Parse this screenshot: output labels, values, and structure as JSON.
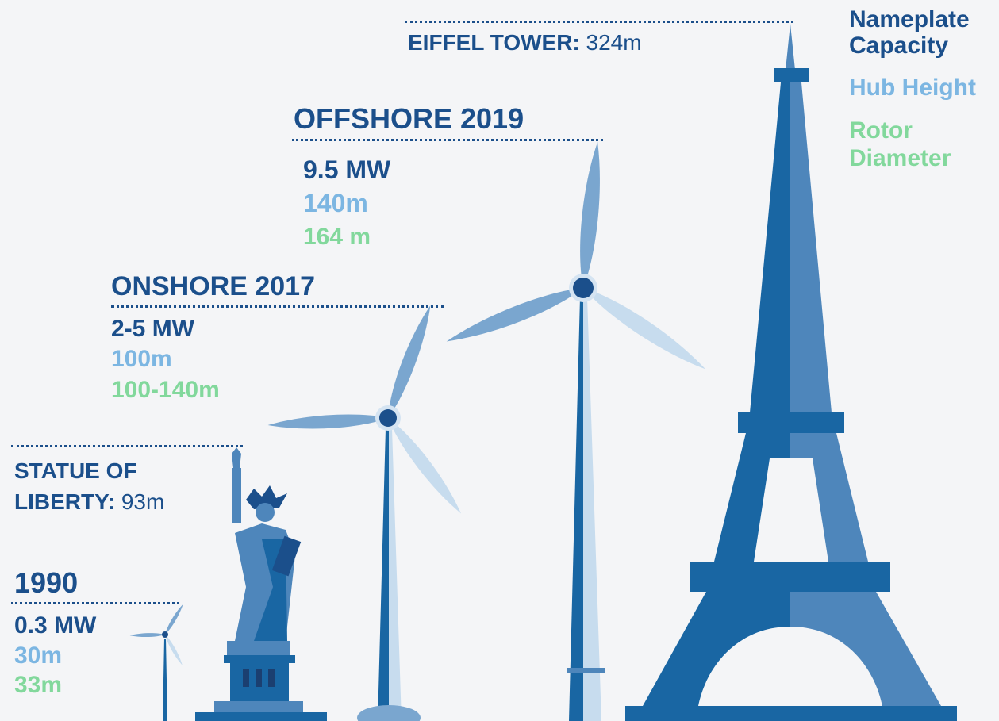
{
  "legend": [
    {
      "label": "Nameplate Capacity"
    },
    {
      "label": "Hub Height"
    },
    {
      "label": "Rotor Diameter"
    }
  ],
  "landmarks": [
    {
      "name": "EIFFEL TOWER:",
      "height": "324m"
    },
    {
      "name": "STATUE OF LIBERTY:",
      "height": "93m"
    }
  ],
  "turbines": [
    {
      "title": "1990",
      "capacity": "0.3 MW",
      "hub_height": "30m",
      "rotor_diameter": "33m"
    },
    {
      "title": "ONSHORE 2017",
      "capacity": "2-5 MW",
      "hub_height": "100m",
      "rotor_diameter": "100-140m"
    },
    {
      "title": "OFFSHORE 2019",
      "capacity": "9.5 MW",
      "hub_height": "140m",
      "rotor_diameter": "164 m"
    }
  ]
}
